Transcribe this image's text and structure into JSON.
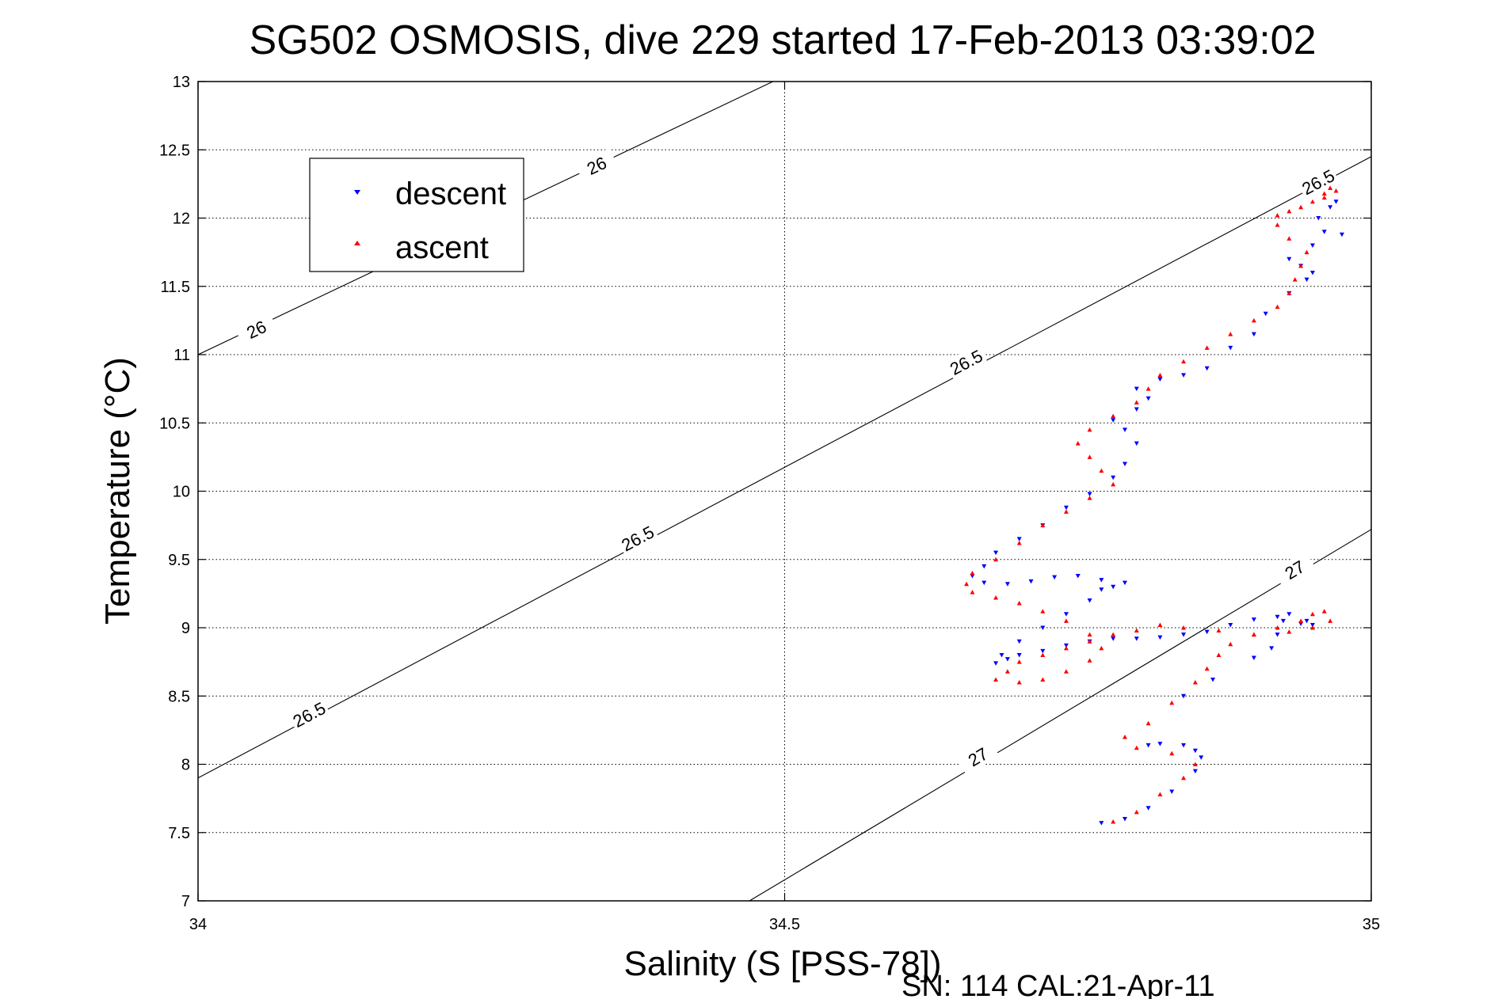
{
  "chart_data": {
    "type": "scatter",
    "title": "SG502 OSMOSIS, dive 229 started 17-Feb-2013 03:39:02",
    "xlabel": "Salinity (S [PSS-78])",
    "ylabel": "Temperature (°C)",
    "xlim": [
      34,
      35
    ],
    "ylim": [
      7,
      13
    ],
    "x_ticks": [
      34,
      34.5,
      35
    ],
    "y_ticks": [
      7,
      7.5,
      8,
      8.5,
      9,
      9.5,
      10,
      10.5,
      11,
      11.5,
      12,
      12.5,
      13
    ],
    "x_tick_labels": [
      "34",
      "34.5",
      "35"
    ],
    "y_tick_labels": [
      "7",
      "7.5",
      "8",
      "8.5",
      "9",
      "9.5",
      "10",
      "10.5",
      "11",
      "11.5",
      "12",
      "12.5",
      "13"
    ],
    "grid": true,
    "legend_position": "top-left",
    "footer": "SN: 114  CAL:21-Apr-11",
    "series": [
      {
        "name": "descent",
        "color": "#0000ff",
        "marker": "triangle-down",
        "points": [
          [
            34.77,
            7.57
          ],
          [
            34.79,
            7.6
          ],
          [
            34.81,
            7.68
          ],
          [
            34.83,
            7.8
          ],
          [
            34.85,
            7.95
          ],
          [
            34.855,
            8.05
          ],
          [
            34.85,
            8.1
          ],
          [
            34.84,
            8.14
          ],
          [
            34.82,
            8.15
          ],
          [
            34.81,
            8.14
          ],
          [
            34.84,
            8.5
          ],
          [
            34.865,
            8.62
          ],
          [
            34.9,
            8.78
          ],
          [
            34.915,
            8.85
          ],
          [
            34.92,
            8.95
          ],
          [
            34.925,
            9.05
          ],
          [
            34.93,
            9.1
          ],
          [
            34.945,
            9.05
          ],
          [
            34.95,
            9.02
          ],
          [
            34.94,
            9.03
          ],
          [
            34.92,
            9.08
          ],
          [
            34.9,
            9.06
          ],
          [
            34.88,
            9.02
          ],
          [
            34.86,
            8.97
          ],
          [
            34.84,
            8.95
          ],
          [
            34.82,
            8.93
          ],
          [
            34.8,
            8.92
          ],
          [
            34.78,
            8.92
          ],
          [
            34.76,
            8.9
          ],
          [
            34.74,
            8.87
          ],
          [
            34.72,
            8.83
          ],
          [
            34.7,
            8.8
          ],
          [
            34.69,
            8.77
          ],
          [
            34.68,
            8.74
          ],
          [
            34.685,
            8.8
          ],
          [
            34.7,
            8.9
          ],
          [
            34.72,
            9.0
          ],
          [
            34.74,
            9.1
          ],
          [
            34.76,
            9.2
          ],
          [
            34.77,
            9.28
          ],
          [
            34.78,
            9.3
          ],
          [
            34.79,
            9.33
          ],
          [
            34.77,
            9.35
          ],
          [
            34.75,
            9.38
          ],
          [
            34.73,
            9.37
          ],
          [
            34.71,
            9.34
          ],
          [
            34.69,
            9.32
          ],
          [
            34.67,
            9.33
          ],
          [
            34.66,
            9.38
          ],
          [
            34.67,
            9.45
          ],
          [
            34.68,
            9.55
          ],
          [
            34.7,
            9.65
          ],
          [
            34.72,
            9.75
          ],
          [
            34.74,
            9.88
          ],
          [
            34.76,
            9.98
          ],
          [
            34.78,
            10.1
          ],
          [
            34.79,
            10.2
          ],
          [
            34.8,
            10.35
          ],
          [
            34.79,
            10.45
          ],
          [
            34.78,
            10.52
          ],
          [
            34.8,
            10.6
          ],
          [
            34.81,
            10.68
          ],
          [
            34.8,
            10.75
          ],
          [
            34.82,
            10.82
          ],
          [
            34.84,
            10.85
          ],
          [
            34.86,
            10.9
          ],
          [
            34.88,
            11.05
          ],
          [
            34.9,
            11.15
          ],
          [
            34.91,
            11.3
          ],
          [
            34.93,
            11.45
          ],
          [
            34.945,
            11.55
          ],
          [
            34.95,
            11.6
          ],
          [
            34.94,
            11.65
          ],
          [
            34.93,
            11.7
          ],
          [
            34.95,
            11.8
          ],
          [
            34.96,
            11.9
          ],
          [
            34.955,
            12.0
          ],
          [
            34.965,
            12.08
          ],
          [
            34.97,
            12.12
          ],
          [
            34.975,
            11.88
          ]
        ]
      },
      {
        "name": "ascent",
        "color": "#ff0000",
        "marker": "triangle-up",
        "points": [
          [
            34.78,
            7.58
          ],
          [
            34.8,
            7.65
          ],
          [
            34.82,
            7.78
          ],
          [
            34.84,
            7.9
          ],
          [
            34.85,
            8.0
          ],
          [
            34.83,
            8.08
          ],
          [
            34.8,
            8.12
          ],
          [
            34.79,
            8.2
          ],
          [
            34.81,
            8.3
          ],
          [
            34.83,
            8.45
          ],
          [
            34.85,
            8.6
          ],
          [
            34.86,
            8.7
          ],
          [
            34.87,
            8.8
          ],
          [
            34.88,
            8.88
          ],
          [
            34.9,
            8.95
          ],
          [
            34.92,
            9.0
          ],
          [
            34.94,
            9.05
          ],
          [
            34.95,
            9.1
          ],
          [
            34.96,
            9.12
          ],
          [
            34.965,
            9.05
          ],
          [
            34.95,
            9.0
          ],
          [
            34.93,
            8.97
          ],
          [
            34.9,
            8.95
          ],
          [
            34.87,
            8.98
          ],
          [
            34.84,
            9.0
          ],
          [
            34.82,
            9.02
          ],
          [
            34.8,
            8.98
          ],
          [
            34.78,
            8.95
          ],
          [
            34.76,
            8.9
          ],
          [
            34.74,
            8.85
          ],
          [
            34.72,
            8.8
          ],
          [
            34.7,
            8.75
          ],
          [
            34.69,
            8.68
          ],
          [
            34.68,
            8.62
          ],
          [
            34.7,
            8.6
          ],
          [
            34.72,
            8.62
          ],
          [
            34.74,
            8.68
          ],
          [
            34.76,
            8.76
          ],
          [
            34.77,
            8.85
          ],
          [
            34.76,
            8.95
          ],
          [
            34.74,
            9.05
          ],
          [
            34.72,
            9.12
          ],
          [
            34.7,
            9.18
          ],
          [
            34.68,
            9.22
          ],
          [
            34.66,
            9.26
          ],
          [
            34.655,
            9.32
          ],
          [
            34.66,
            9.4
          ],
          [
            34.68,
            9.5
          ],
          [
            34.7,
            9.62
          ],
          [
            34.72,
            9.75
          ],
          [
            34.74,
            9.85
          ],
          [
            34.76,
            9.95
          ],
          [
            34.78,
            10.05
          ],
          [
            34.77,
            10.15
          ],
          [
            34.76,
            10.25
          ],
          [
            34.75,
            10.35
          ],
          [
            34.76,
            10.45
          ],
          [
            34.78,
            10.55
          ],
          [
            34.8,
            10.65
          ],
          [
            34.81,
            10.75
          ],
          [
            34.82,
            10.85
          ],
          [
            34.84,
            10.95
          ],
          [
            34.86,
            11.05
          ],
          [
            34.88,
            11.15
          ],
          [
            34.9,
            11.25
          ],
          [
            34.92,
            11.35
          ],
          [
            34.93,
            11.45
          ],
          [
            34.935,
            11.55
          ],
          [
            34.94,
            11.65
          ],
          [
            34.945,
            11.75
          ],
          [
            34.93,
            11.85
          ],
          [
            34.92,
            11.95
          ],
          [
            34.93,
            12.05
          ],
          [
            34.95,
            12.12
          ],
          [
            34.96,
            12.18
          ],
          [
            34.965,
            12.22
          ],
          [
            34.97,
            12.2
          ],
          [
            34.96,
            12.15
          ],
          [
            34.94,
            12.08
          ],
          [
            34.92,
            12.02
          ]
        ]
      }
    ],
    "isopycnals": [
      {
        "label": "26",
        "points": [
          [
            34,
            11.0
          ],
          [
            34.49,
            13.0
          ]
        ],
        "label_at": [
          [
            34.05,
            11.18
          ],
          [
            34.34,
            12.38
          ]
        ]
      },
      {
        "label": "26.5",
        "points": [
          [
            34,
            7.9
          ],
          [
            35,
            12.45
          ]
        ],
        "label_at": [
          [
            34.095,
            8.36
          ],
          [
            34.375,
            9.65
          ],
          [
            34.655,
            10.94
          ],
          [
            34.955,
            12.26
          ]
        ]
      },
      {
        "label": "27",
        "points": [
          [
            34.47,
            7.0
          ],
          [
            35,
            9.72
          ]
        ],
        "label_at": [
          [
            34.665,
            8.05
          ],
          [
            34.935,
            9.42
          ]
        ]
      }
    ]
  }
}
